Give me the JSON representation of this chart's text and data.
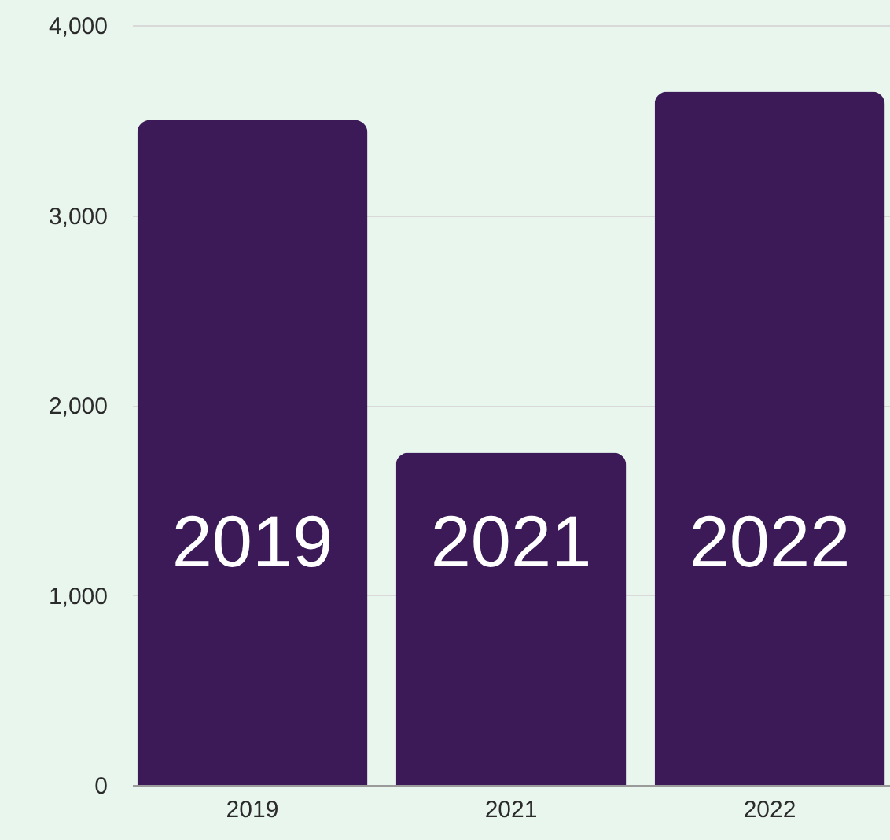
{
  "chart_data": {
    "type": "bar",
    "categories": [
      "2019",
      "2021",
      "2022"
    ],
    "values": [
      3500,
      1750,
      3650
    ],
    "color": "#3b1a57",
    "ylim": [
      0,
      4000
    ],
    "yticks": [
      {
        "value": 0,
        "label": "0"
      },
      {
        "value": 1000,
        "label": "1,000"
      },
      {
        "value": 2000,
        "label": "2,000"
      },
      {
        "value": 3000,
        "label": "3,000"
      },
      {
        "value": 4000,
        "label": "4,000"
      }
    ],
    "grid": "y",
    "annotations": [
      "2019",
      "2021",
      "2022"
    ]
  }
}
